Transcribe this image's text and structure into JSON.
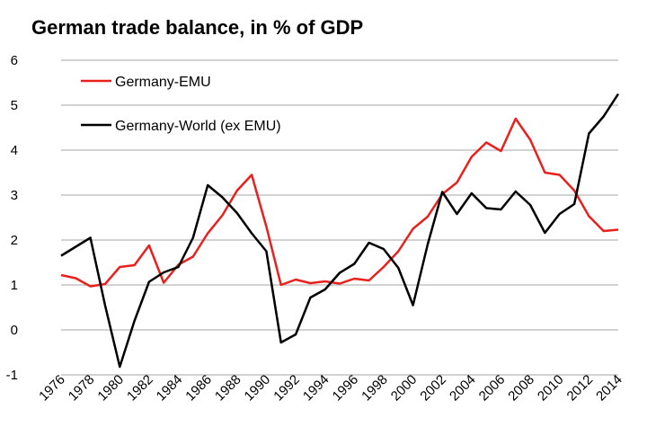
{
  "chart_data": {
    "type": "line",
    "title": "German trade balance, in % of GDP",
    "xlabel": "",
    "ylabel": "",
    "xlim": [
      1976,
      2014
    ],
    "ylim": [
      -1,
      6
    ],
    "y_ticks": [
      6,
      5,
      4,
      3,
      2,
      1,
      0,
      -1
    ],
    "y_tick_labels": [
      "6",
      "5",
      "4",
      "3",
      "2",
      "1",
      "0",
      "-1"
    ],
    "x_ticks": [
      1976,
      1978,
      1980,
      1982,
      1984,
      1986,
      1988,
      1990,
      1992,
      1994,
      1996,
      1998,
      2000,
      2002,
      2004,
      2006,
      2008,
      2010,
      2012,
      2014
    ],
    "x_tick_labels": [
      "1976",
      "1978",
      "1980",
      "1982",
      "1984",
      "1986",
      "1988",
      "1990",
      "1992",
      "1994",
      "1996",
      "1998",
      "2000",
      "2002",
      "2004",
      "2006",
      "2008",
      "2010",
      "2012",
      "2014"
    ],
    "grid": "horizontal",
    "legend_position": "top-left",
    "x": [
      1976,
      1977,
      1978,
      1979,
      1980,
      1981,
      1982,
      1983,
      1984,
      1985,
      1986,
      1987,
      1988,
      1989,
      1990,
      1991,
      1992,
      1993,
      1994,
      1995,
      1996,
      1997,
      1998,
      1999,
      2000,
      2001,
      2002,
      2003,
      2004,
      2005,
      2006,
      2007,
      2008,
      2009,
      2010,
      2011,
      2012,
      2013,
      2014
    ],
    "series": [
      {
        "name": "Germany-EMU",
        "color": "#e8201e",
        "values": [
          1.22,
          1.15,
          0.97,
          1.02,
          1.4,
          1.44,
          1.88,
          1.05,
          1.45,
          1.63,
          2.15,
          2.55,
          3.1,
          3.45,
          2.3,
          1.0,
          1.12,
          1.04,
          1.08,
          1.03,
          1.14,
          1.1,
          1.4,
          1.75,
          2.25,
          2.52,
          3.02,
          3.28,
          3.85,
          4.17,
          3.98,
          4.7,
          4.23,
          3.5,
          3.45,
          3.1,
          2.53,
          2.2,
          2.23
        ]
      },
      {
        "name": "Germany-World (ex EMU)",
        "color": "#000000",
        "values": [
          1.65,
          1.85,
          2.05,
          0.55,
          -0.82,
          0.2,
          1.07,
          1.28,
          1.4,
          2.05,
          3.22,
          2.95,
          2.6,
          2.15,
          1.75,
          -0.28,
          -0.1,
          0.72,
          0.9,
          1.27,
          1.47,
          1.94,
          1.8,
          1.38,
          0.55,
          1.9,
          3.07,
          2.58,
          3.04,
          2.71,
          2.68,
          3.08,
          2.78,
          2.16,
          2.58,
          2.8,
          4.37,
          4.75,
          5.25
        ]
      }
    ]
  }
}
